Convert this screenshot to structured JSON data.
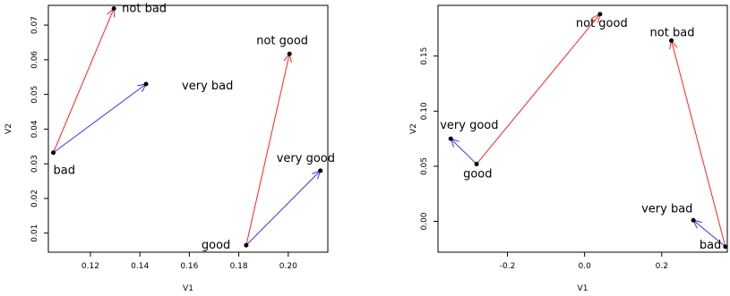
{
  "chart_data": [
    {
      "type": "scatter",
      "xlabel": "V1",
      "ylabel": "V2",
      "xlim": [
        0.103,
        0.216
      ],
      "ylim": [
        0.0045,
        0.0757
      ],
      "xticks": [
        "0.12",
        "0.14",
        "0.16",
        "0.18",
        "0.20"
      ],
      "xtick_values": [
        0.12,
        0.14,
        0.16,
        0.18,
        0.2
      ],
      "yticks": [
        "0.01",
        "0.02",
        "0.03",
        "0.04",
        "0.05",
        "0.06",
        "0.07"
      ],
      "ytick_values": [
        0.01,
        0.02,
        0.03,
        0.04,
        0.05,
        0.06,
        0.07
      ],
      "points": [
        {
          "label": "not bad",
          "x": 0.1295,
          "y": 0.0748
        },
        {
          "label": "very bad",
          "x": 0.1425,
          "y": 0.053
        },
        {
          "label": "bad",
          "x": 0.105,
          "y": 0.0332
        },
        {
          "label": "not good",
          "x": 0.2005,
          "y": 0.0617
        },
        {
          "label": "very good",
          "x": 0.213,
          "y": 0.028
        },
        {
          "label": "good",
          "x": 0.183,
          "y": 0.0065
        }
      ],
      "arrows": [
        {
          "from": "bad",
          "to": "not bad",
          "color": "#ff2222"
        },
        {
          "from": "bad",
          "to": "very bad",
          "color": "#3333ff"
        },
        {
          "from": "good",
          "to": "not good",
          "color": "#ff2222"
        },
        {
          "from": "good",
          "to": "very good",
          "color": "#3333ff"
        }
      ]
    },
    {
      "type": "scatter",
      "xlabel": "V1",
      "ylabel": "V2",
      "xlim": [
        -0.38,
        0.37
      ],
      "ylim": [
        -0.028,
        0.196
      ],
      "xticks": [
        "-0.2",
        "0.0",
        "0.2"
      ],
      "xtick_values": [
        -0.2,
        0.0,
        0.2
      ],
      "yticks": [
        "0.00",
        "0.05",
        "0.10",
        "0.15"
      ],
      "ytick_values": [
        0.0,
        0.05,
        0.1,
        0.15
      ],
      "points": [
        {
          "label": "not good",
          "x": 0.04,
          "y": 0.188
        },
        {
          "label": "not bad",
          "x": 0.225,
          "y": 0.164
        },
        {
          "label": "very good",
          "x": -0.347,
          "y": 0.075
        },
        {
          "label": "good",
          "x": -0.28,
          "y": 0.052
        },
        {
          "label": "very bad",
          "x": 0.282,
          "y": 0.001
        },
        {
          "label": "bad",
          "x": 0.365,
          "y": -0.023
        }
      ],
      "arrows": [
        {
          "from": "good",
          "to": "not good",
          "color": "#ff2222"
        },
        {
          "from": "good",
          "to": "very good",
          "color": "#3333ff"
        },
        {
          "from": "bad",
          "to": "not bad",
          "color": "#ff2222"
        },
        {
          "from": "bad",
          "to": "very bad",
          "color": "#3333ff"
        }
      ]
    }
  ]
}
